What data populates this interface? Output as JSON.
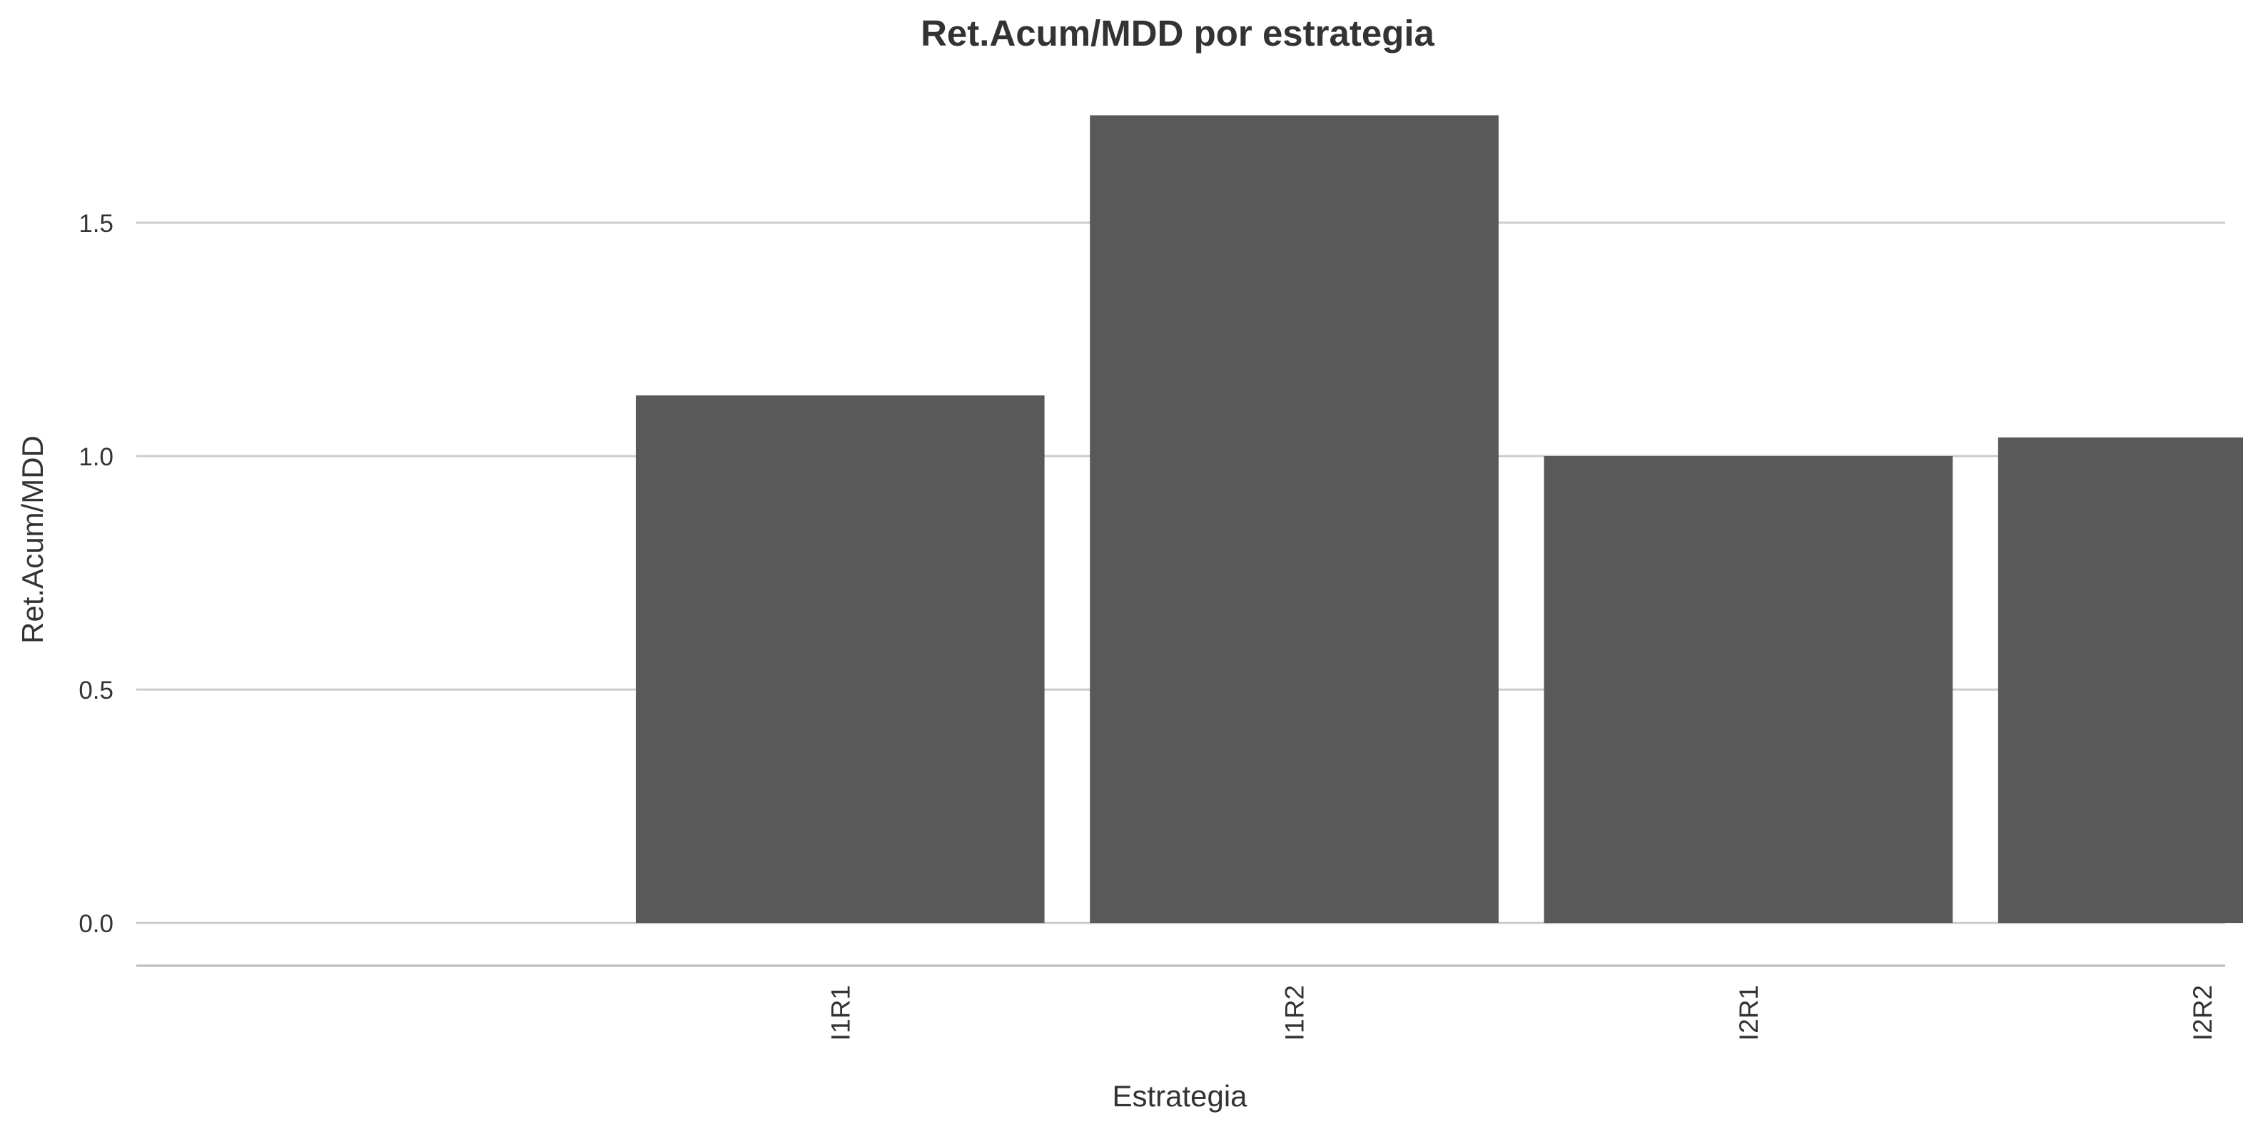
{
  "chart_data": {
    "type": "bar",
    "title": "Ret.Acum/MDD por estrategia",
    "xlabel": "Estrategia",
    "ylabel": "Ret.Acum/MDD",
    "categories": [
      "I1R1",
      "I1R2",
      "I2R1",
      "I2R2"
    ],
    "values": [
      1.13,
      1.73,
      1.0,
      1.04
    ],
    "ylim": [
      -0.09,
      1.85
    ],
    "yticks": [
      0.0,
      0.5,
      1.0,
      1.5
    ],
    "ytick_labels": [
      "0.0",
      "0.5",
      "1.0",
      "1.5"
    ],
    "xlim": [
      0.45,
      5.05
    ],
    "bar_color": "#595959",
    "grid_color": "#cccccc",
    "axis_line_color": "#bbbbbb",
    "grid": "horizontal",
    "legend": "none"
  }
}
